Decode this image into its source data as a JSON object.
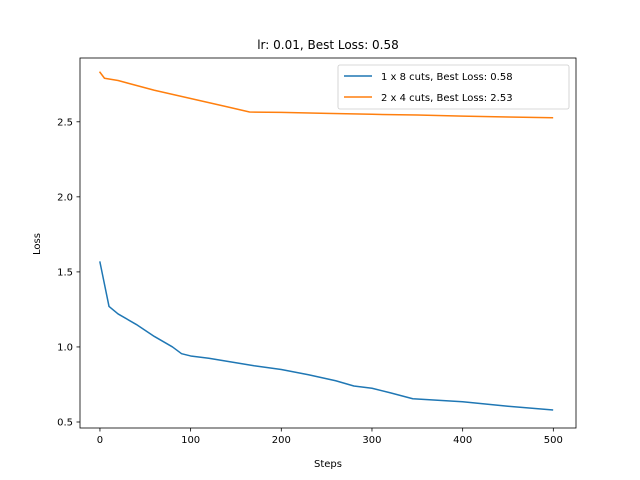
{
  "chart_data": {
    "type": "line",
    "title": "lr: 0.01, Best Loss: 0.58",
    "xlabel": "Steps",
    "ylabel": "Loss",
    "xlim": [
      -22,
      525
    ],
    "ylim": [
      0.46,
      2.925
    ],
    "xticks": [
      0,
      100,
      200,
      300,
      400,
      500
    ],
    "yticks": [
      0.5,
      1.0,
      1.5,
      2.0,
      2.5
    ],
    "xtick_labels": [
      "0",
      "100",
      "200",
      "300",
      "400",
      "500"
    ],
    "ytick_labels": [
      "0.5",
      "1.0",
      "1.5",
      "2.0",
      "2.5"
    ],
    "grid": false,
    "legend_position": "top-right",
    "series": [
      {
        "name": "1 x 8 cuts, Best Loss: 0.58",
        "color": "#1f77b4",
        "x": [
          0,
          10,
          20,
          40,
          60,
          80,
          90,
          100,
          120,
          150,
          170,
          200,
          230,
          260,
          280,
          300,
          320,
          345,
          400,
          450,
          499
        ],
        "y": [
          1.565,
          1.27,
          1.22,
          1.15,
          1.07,
          1.0,
          0.955,
          0.94,
          0.925,
          0.895,
          0.875,
          0.85,
          0.815,
          0.775,
          0.74,
          0.725,
          0.695,
          0.655,
          0.635,
          0.605,
          0.58
        ]
      },
      {
        "name": "2 x 4 cuts, Best Loss: 2.53",
        "color": "#ff7f0e",
        "x": [
          0,
          5,
          20,
          60,
          100,
          140,
          165,
          200,
          250,
          300,
          350,
          400,
          450,
          499
        ],
        "y": [
          2.83,
          2.79,
          2.775,
          2.71,
          2.655,
          2.6,
          2.565,
          2.563,
          2.556,
          2.55,
          2.545,
          2.538,
          2.532,
          2.527
        ]
      }
    ]
  }
}
